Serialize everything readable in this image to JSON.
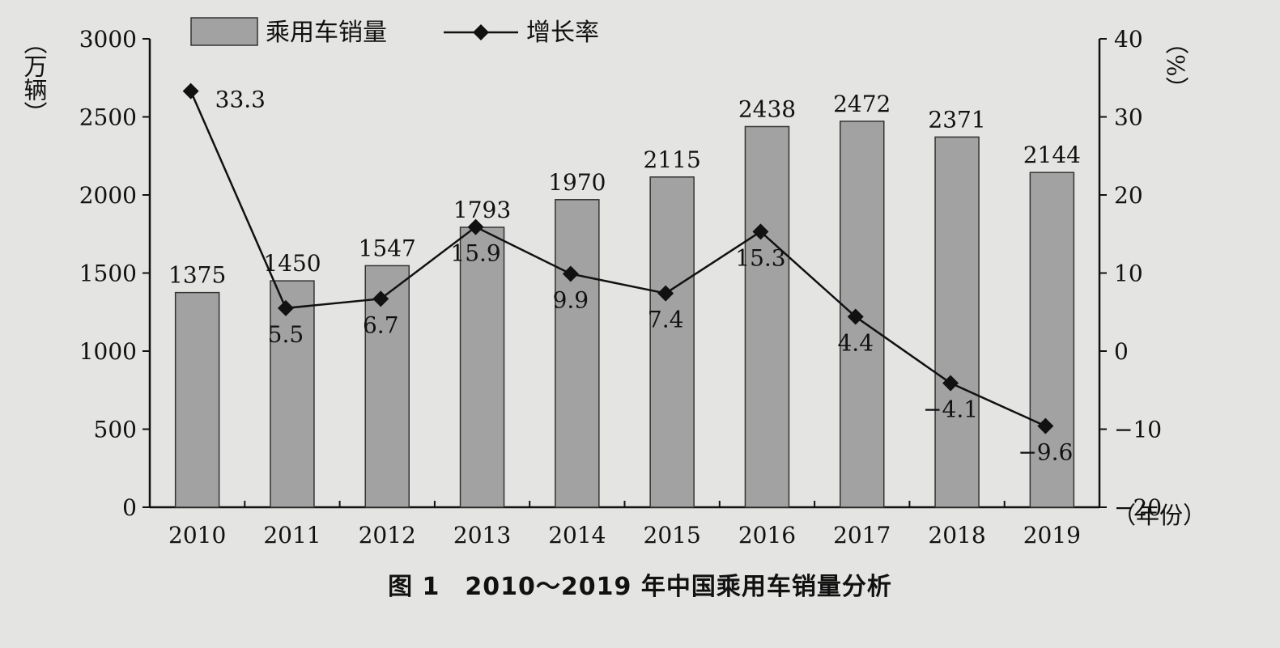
{
  "chart_data": {
    "type": "bar",
    "title": "",
    "caption": "图 1　2010～2019 年中国乘用车销量分析",
    "categories": [
      "2010",
      "2011",
      "2012",
      "2013",
      "2014",
      "2015",
      "2016",
      "2017",
      "2018",
      "2019"
    ],
    "series": [
      {
        "name": "乘用车销量",
        "type": "bar",
        "axis": "left",
        "values": [
          1375,
          1450,
          1547,
          1793,
          1970,
          2115,
          2438,
          2472,
          2371,
          2144
        ]
      },
      {
        "name": "增长率",
        "type": "line",
        "axis": "right",
        "values": [
          33.3,
          5.5,
          6.7,
          15.9,
          9.9,
          7.4,
          15.3,
          4.4,
          -4.1,
          -9.6
        ]
      }
    ],
    "y_left": {
      "label": "（万辆）",
      "range": [
        0,
        3000
      ],
      "ticks": [
        0,
        500,
        1000,
        1500,
        2000,
        2500,
        3000
      ]
    },
    "y_right": {
      "label": "（%）",
      "range": [
        -20,
        40
      ],
      "ticks": [
        -20,
        -10,
        0,
        10,
        20,
        30,
        40
      ]
    },
    "x_label": "（年份）",
    "legend": {
      "position": "top-left"
    },
    "colors": {
      "bar": "#a2a2a2",
      "bar_edge": "#333333",
      "line": "#111111"
    }
  }
}
